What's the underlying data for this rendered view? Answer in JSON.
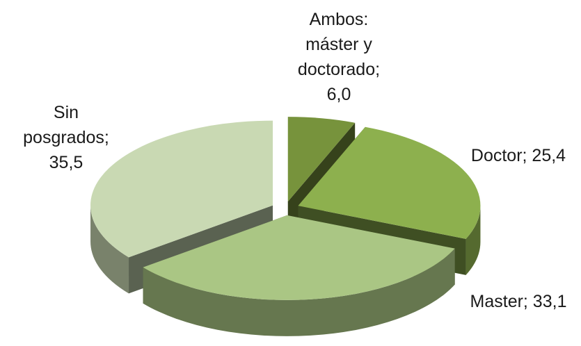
{
  "chart_data": {
    "type": "pie",
    "values": [
      6.0,
      25.4,
      33.1,
      35.5
    ],
    "value_labels": [
      "Ambos: máster y doctorado; 6,0",
      "Doctor; 25,4",
      "Master; 33,1",
      "Sin posgrados; 35,5"
    ],
    "colors": [
      "#77933c",
      "#8db04e",
      "#aac684",
      "#c9d9b3"
    ]
  }
}
